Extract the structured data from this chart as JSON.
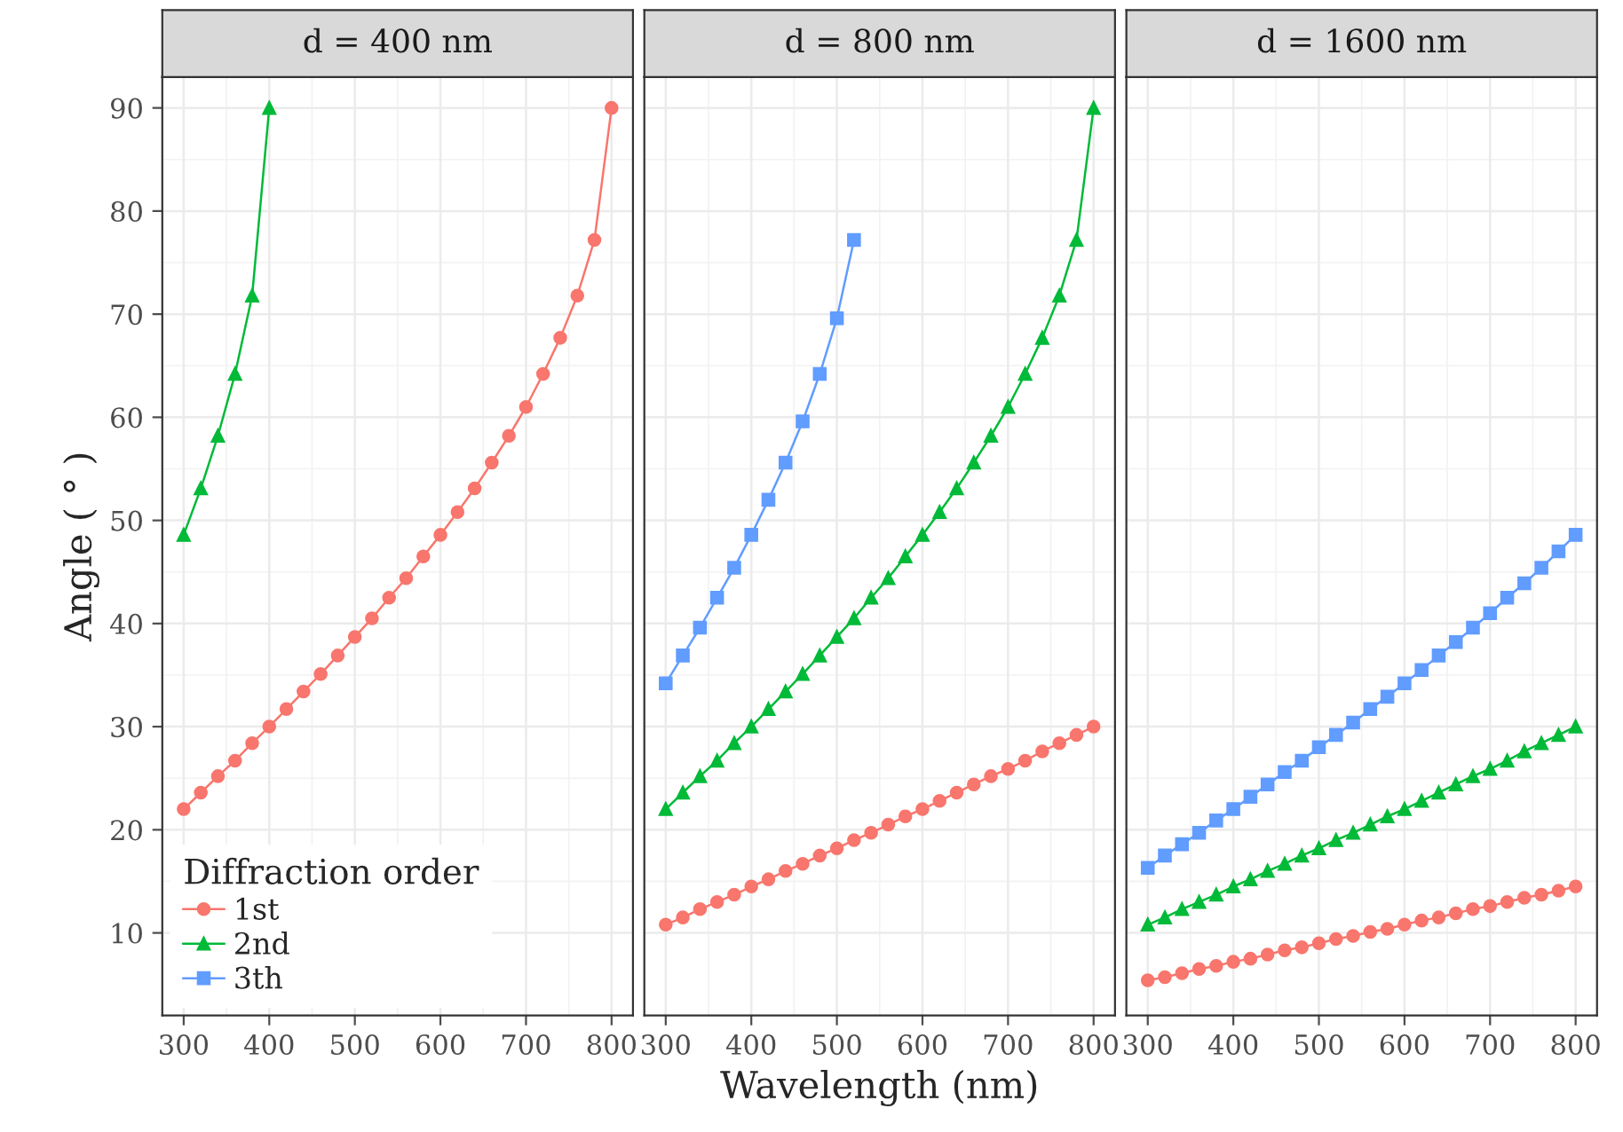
{
  "chart_data": [
    {
      "type": "line",
      "title": "d = 400 nm",
      "ylabel": "Angle ( ° )",
      "xlim": [
        275,
        825
      ],
      "xticks": [
        300,
        400,
        500,
        600,
        700,
        800
      ],
      "ylim": [
        2,
        93
      ],
      "yticks": [
        10,
        20,
        30,
        40,
        50,
        60,
        70,
        80,
        90
      ],
      "grid": true,
      "legend": "bottom left",
      "legend_title": "Diffraction order",
      "series": [
        {
          "name": "1st",
          "color": "#f8766d",
          "marker": "circle",
          "x": [
            300,
            320,
            340,
            360,
            380,
            400,
            420,
            440,
            460,
            480,
            500,
            520,
            540,
            560,
            580,
            600,
            620,
            640,
            660,
            680,
            700,
            720,
            740,
            760,
            780,
            800
          ],
          "values": [
            22.0,
            23.6,
            25.2,
            26.7,
            28.4,
            30.0,
            31.7,
            33.4,
            35.1,
            36.9,
            38.7,
            40.5,
            42.5,
            44.4,
            46.5,
            48.6,
            50.8,
            53.1,
            55.6,
            58.2,
            61.0,
            64.2,
            67.7,
            71.8,
            77.2,
            90.0
          ]
        },
        {
          "name": "2nd",
          "color": "#00ba38",
          "marker": "triangle",
          "x": [
            300,
            320,
            340,
            360,
            380,
            400
          ],
          "values": [
            48.6,
            53.1,
            58.2,
            64.2,
            71.8,
            90.0
          ]
        },
        {
          "name": "3th",
          "color": "#619cff",
          "marker": "square"
        }
      ]
    },
    {
      "type": "line",
      "title": "d = 800 nm",
      "xlabel": "Wavelength (nm)",
      "xlim": [
        275,
        825
      ],
      "xticks": [
        300,
        400,
        500,
        600,
        700,
        800
      ],
      "ylim": [
        2,
        93
      ],
      "yticks": [
        10,
        20,
        30,
        40,
        50,
        60,
        70,
        80,
        90
      ],
      "grid": true,
      "tick_labels": "x",
      "series": [
        {
          "color": "#f8766d",
          "marker": "circle",
          "x": [
            300,
            320,
            340,
            360,
            380,
            400,
            420,
            440,
            460,
            480,
            500,
            520,
            540,
            560,
            580,
            600,
            620,
            640,
            660,
            680,
            700,
            720,
            740,
            760,
            780,
            800
          ],
          "values": [
            10.8,
            11.5,
            12.3,
            13.0,
            13.7,
            14.5,
            15.2,
            16.0,
            16.7,
            17.5,
            18.2,
            19.0,
            19.7,
            20.5,
            21.3,
            22.0,
            22.8,
            23.6,
            24.4,
            25.2,
            25.9,
            26.7,
            27.6,
            28.4,
            29.2,
            30.0
          ]
        },
        {
          "color": "#00ba38",
          "marker": "triangle",
          "x": [
            300,
            320,
            340,
            360,
            380,
            400,
            420,
            440,
            460,
            480,
            500,
            520,
            540,
            560,
            580,
            600,
            620,
            640,
            660,
            680,
            700,
            720,
            740,
            760,
            780,
            800
          ],
          "values": [
            22.0,
            23.6,
            25.2,
            26.7,
            28.4,
            30.0,
            31.7,
            33.4,
            35.1,
            36.9,
            38.7,
            40.5,
            42.5,
            44.4,
            46.5,
            48.6,
            50.8,
            53.1,
            55.6,
            58.2,
            61.0,
            64.2,
            67.7,
            71.8,
            77.2,
            90.0
          ]
        },
        {
          "color": "#619cff",
          "marker": "square",
          "x": [
            300,
            320,
            340,
            360,
            380,
            400,
            420,
            440,
            460,
            480,
            500,
            520
          ],
          "values": [
            34.2,
            36.9,
            39.6,
            42.5,
            45.4,
            48.6,
            52.0,
            55.6,
            59.6,
            64.2,
            69.6,
            77.2
          ]
        }
      ]
    },
    {
      "type": "line",
      "title": "d = 1600 nm",
      "xlim": [
        275,
        825
      ],
      "xticks": [
        300,
        400,
        500,
        600,
        700,
        800
      ],
      "ylim": [
        2,
        93
      ],
      "yticks": [
        10,
        20,
        30,
        40,
        50,
        60,
        70,
        80,
        90
      ],
      "grid": true,
      "tick_labels": "x",
      "series": [
        {
          "color": "#f8766d",
          "marker": "circle",
          "x": [
            300,
            320,
            340,
            360,
            380,
            400,
            420,
            440,
            460,
            480,
            500,
            520,
            540,
            560,
            580,
            600,
            620,
            640,
            660,
            680,
            700,
            720,
            740,
            760,
            780,
            800
          ],
          "values": [
            5.4,
            5.7,
            6.1,
            6.5,
            6.8,
            7.2,
            7.5,
            7.9,
            8.3,
            8.6,
            9.0,
            9.4,
            9.7,
            10.1,
            10.4,
            10.8,
            11.2,
            11.5,
            11.9,
            12.3,
            12.6,
            13.0,
            13.4,
            13.7,
            14.1,
            14.5
          ]
        },
        {
          "color": "#00ba38",
          "marker": "triangle",
          "x": [
            300,
            320,
            340,
            360,
            380,
            400,
            420,
            440,
            460,
            480,
            500,
            520,
            540,
            560,
            580,
            600,
            620,
            640,
            660,
            680,
            700,
            720,
            740,
            760,
            780,
            800
          ],
          "values": [
            10.8,
            11.5,
            12.3,
            13.0,
            13.7,
            14.5,
            15.2,
            16.0,
            16.7,
            17.5,
            18.2,
            19.0,
            19.7,
            20.5,
            21.3,
            22.0,
            22.8,
            23.6,
            24.4,
            25.2,
            25.9,
            26.7,
            27.6,
            28.4,
            29.2,
            30.0
          ]
        },
        {
          "color": "#619cff",
          "marker": "square",
          "x": [
            300,
            320,
            340,
            360,
            380,
            400,
            420,
            440,
            460,
            480,
            500,
            520,
            540,
            560,
            580,
            600,
            620,
            640,
            660,
            680,
            700,
            720,
            740,
            760,
            780,
            800
          ],
          "values": [
            16.3,
            17.5,
            18.6,
            19.7,
            20.9,
            22.0,
            23.2,
            24.4,
            25.6,
            26.7,
            28.0,
            29.2,
            30.4,
            31.7,
            32.9,
            34.2,
            35.5,
            36.9,
            38.2,
            39.6,
            41.0,
            42.5,
            43.9,
            45.4,
            47.0,
            48.6
          ]
        }
      ]
    }
  ]
}
